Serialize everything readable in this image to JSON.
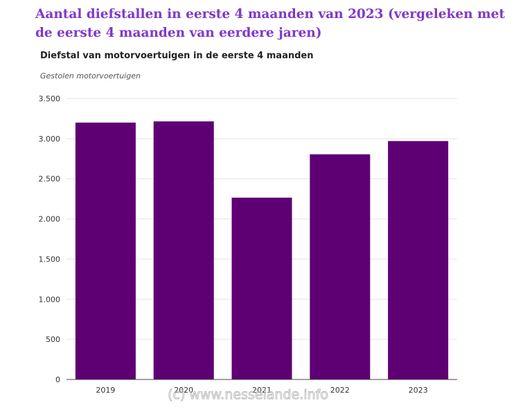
{
  "page": {
    "heading": "Aantal diefstallen in eerste 4 maanden van 2023 (vergeleken met de eerste 4 maanden van eerdere jaren)",
    "watermark": "(c) www.nesselande.info"
  },
  "chart_data": {
    "type": "bar",
    "title": "Diefstal van motorvoertuigen in de eerste 4 maanden",
    "subtitle": "Gestolen motorvoertuigen",
    "categories": [
      "2019",
      "2020",
      "2021",
      "2022",
      "2023"
    ],
    "values": [
      3200,
      3215,
      2265,
      2805,
      2970
    ],
    "ylim": [
      0,
      3500
    ],
    "yticks": [
      0,
      500,
      1000,
      1500,
      2000,
      2500,
      3000,
      3500
    ],
    "ytick_labels": [
      "0",
      "500",
      "1.000",
      "1.500",
      "2.000",
      "2.500",
      "3.000",
      "3.500"
    ],
    "bar_color": "#5e0073",
    "grid": true
  }
}
